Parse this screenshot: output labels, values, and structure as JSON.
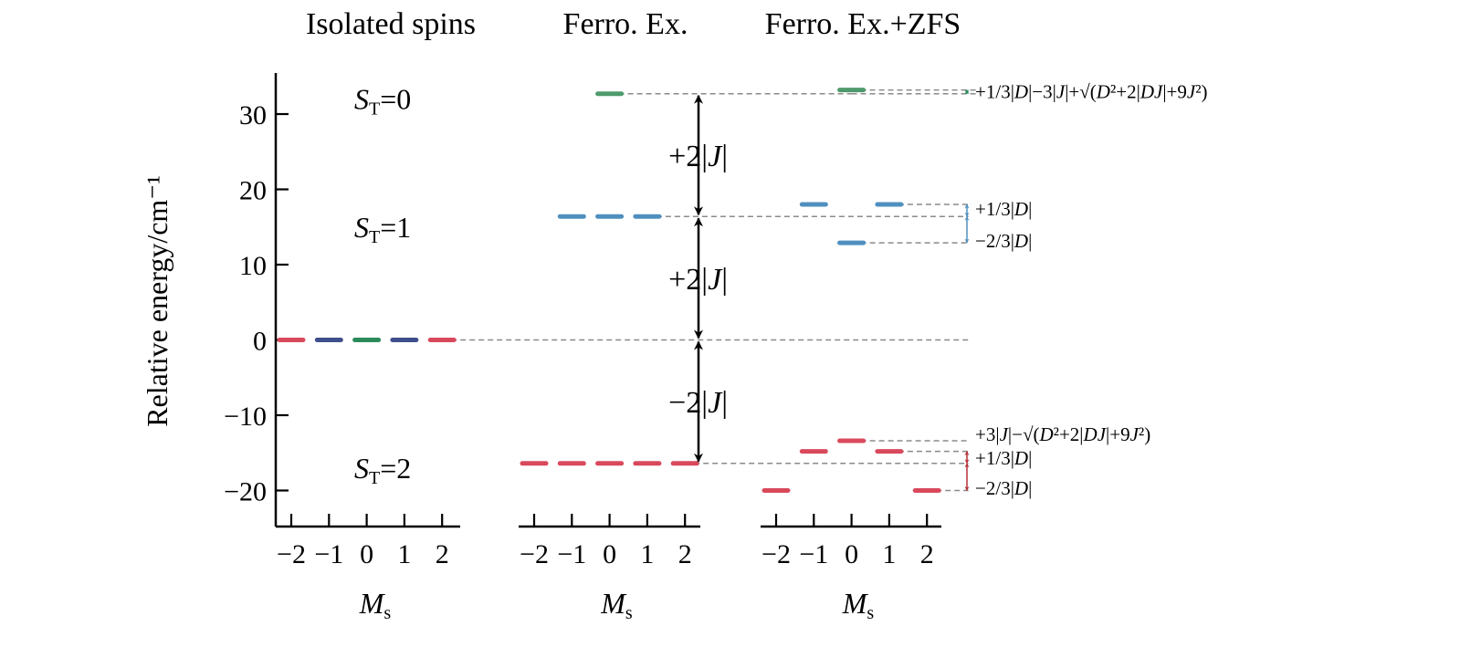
{
  "chart_data": {
    "type": "energy-level-diagram",
    "ylabel": "Relative energy/cm⁻¹",
    "ylim": [
      -25,
      35
    ],
    "yticks": [
      30,
      20,
      10,
      0,
      -10,
      -20
    ],
    "ytick_labels": [
      "30",
      "20",
      "10",
      "0",
      "−10",
      "−20"
    ],
    "xticks": [
      -2,
      -1,
      0,
      1,
      2
    ],
    "xtick_labels": [
      "−2",
      "−1",
      "0",
      "1",
      "2"
    ],
    "xlabel_main": "M",
    "xlabel_sub": "s",
    "grid": false,
    "colors": {
      "red": "#d9495c",
      "blue": "#4f8fbf",
      "green": "#4e9a6c",
      "dark_red": "#b52f36",
      "dark_blue": "#3f4f8c",
      "dark_green": "#2b8a5a",
      "guide": "#8a8a8a",
      "arrow": "#000000"
    },
    "panels": [
      {
        "title": "Isolated spins",
        "levels": [
          {
            "ms": -2,
            "energy": 0,
            "color": "red"
          },
          {
            "ms": -1,
            "energy": 0,
            "color": "dark_blue"
          },
          {
            "ms": 0,
            "energy": 0,
            "color": "dark_green"
          },
          {
            "ms": 1,
            "energy": 0,
            "color": "dark_blue"
          },
          {
            "ms": 2,
            "energy": 0,
            "color": "red"
          }
        ]
      },
      {
        "title": "Ferro. Ex.",
        "levels": [
          {
            "ms": 0,
            "energy": 32.7,
            "color": "green"
          },
          {
            "ms": -1,
            "energy": 16.4,
            "color": "blue"
          },
          {
            "ms": 0,
            "energy": 16.4,
            "color": "blue"
          },
          {
            "ms": 1,
            "energy": 16.4,
            "color": "blue"
          },
          {
            "ms": -2,
            "energy": -16.4,
            "color": "red"
          },
          {
            "ms": -1,
            "energy": -16.4,
            "color": "red"
          },
          {
            "ms": 0,
            "energy": -16.4,
            "color": "red"
          },
          {
            "ms": 1,
            "energy": -16.4,
            "color": "red"
          },
          {
            "ms": 2,
            "energy": -16.4,
            "color": "red"
          }
        ]
      },
      {
        "title": "Ferro. Ex.+ZFS",
        "levels": [
          {
            "ms": 0,
            "energy": 33.2,
            "color": "green"
          },
          {
            "ms": -1,
            "energy": 18.0,
            "color": "blue"
          },
          {
            "ms": 1,
            "energy": 18.0,
            "color": "blue"
          },
          {
            "ms": 0,
            "energy": 12.9,
            "color": "blue"
          },
          {
            "ms": 0,
            "energy": -13.4,
            "color": "red"
          },
          {
            "ms": -1,
            "energy": -14.8,
            "color": "red"
          },
          {
            "ms": 1,
            "energy": -14.8,
            "color": "red"
          },
          {
            "ms": -2,
            "energy": -20.0,
            "color": "red"
          },
          {
            "ms": 2,
            "energy": -20.0,
            "color": "red"
          }
        ]
      }
    ],
    "state_labels": [
      {
        "main": "S",
        "sub": "T",
        "rest": "=0",
        "energy": 32
      },
      {
        "main": "S",
        "sub": "T",
        "rest": "=1",
        "energy": 15
      },
      {
        "main": "S",
        "sub": "T",
        "rest": "=2",
        "energy": -17
      }
    ],
    "gap_arrows": [
      {
        "from": 16.4,
        "to": 32.7,
        "label": "+2|J|"
      },
      {
        "from": 0,
        "to": 16.4,
        "label": "+2|J|"
      },
      {
        "from": -16.4,
        "to": 0,
        "label": "−2|J|"
      }
    ],
    "guide_lines": [
      {
        "energy": 32.7,
        "from_panel": 1,
        "from_ms": 0,
        "to_panel": 2,
        "to_ms": 0
      },
      {
        "energy": 33.2,
        "from_panel": 2,
        "from_ms": 0,
        "to_panel": 2,
        "to_ms": 3.4
      },
      {
        "energy": 32.7,
        "from_panel": 2,
        "from_ms": 0,
        "to_panel": 2,
        "to_ms": 3.4
      },
      {
        "energy": 18.0,
        "from_panel": 2,
        "from_ms": 1,
        "to_panel": 2,
        "to_ms": 3.1
      },
      {
        "energy": 16.4,
        "from_panel": 1,
        "from_ms": 1,
        "to_panel": 2,
        "to_ms": 3.1
      },
      {
        "energy": 12.9,
        "from_panel": 2,
        "from_ms": 0,
        "to_panel": 2,
        "to_ms": 3.1
      },
      {
        "energy": 0,
        "from_panel": 0,
        "from_ms": 2,
        "to_panel": 2,
        "to_ms": 3.1
      },
      {
        "energy": -13.4,
        "from_panel": 2,
        "from_ms": 0,
        "to_panel": 2,
        "to_ms": 3.1
      },
      {
        "energy": -14.8,
        "from_panel": 2,
        "from_ms": 1,
        "to_panel": 2,
        "to_ms": 3.1
      },
      {
        "energy": -16.4,
        "from_panel": 1,
        "from_ms": 2,
        "to_panel": 2,
        "to_ms": 3.1
      },
      {
        "energy": -20.0,
        "from_panel": 2,
        "from_ms": 2,
        "to_panel": 2,
        "to_ms": 3.1
      }
    ],
    "split_arrows": [
      {
        "from": 32.7,
        "to": 33.2,
        "color": "dark_green"
      },
      {
        "from": 16.4,
        "to": 18.0,
        "color": "blue"
      },
      {
        "from": 12.9,
        "to": 16.4,
        "color": "blue"
      },
      {
        "from": -16.4,
        "to": -14.8,
        "color": "dark_red"
      },
      {
        "from": -20.0,
        "to": -16.4,
        "color": "dark_red"
      }
    ],
    "annotations": [
      {
        "text": "+1/3|D|−3|J|+√(D²+2|DJ|+9J²)",
        "energy": 33.1
      },
      {
        "text": "+1/3|D|",
        "energy": 17.5
      },
      {
        "text": "−2/3|D|",
        "energy": 13.3
      },
      {
        "text": "+3|J|−√(D²+2|DJ|+9J²)",
        "energy": -12.4
      },
      {
        "text": "+1/3|D|",
        "energy": -15.6
      },
      {
        "text": "−2/3|D|",
        "energy": -19.6
      }
    ]
  }
}
